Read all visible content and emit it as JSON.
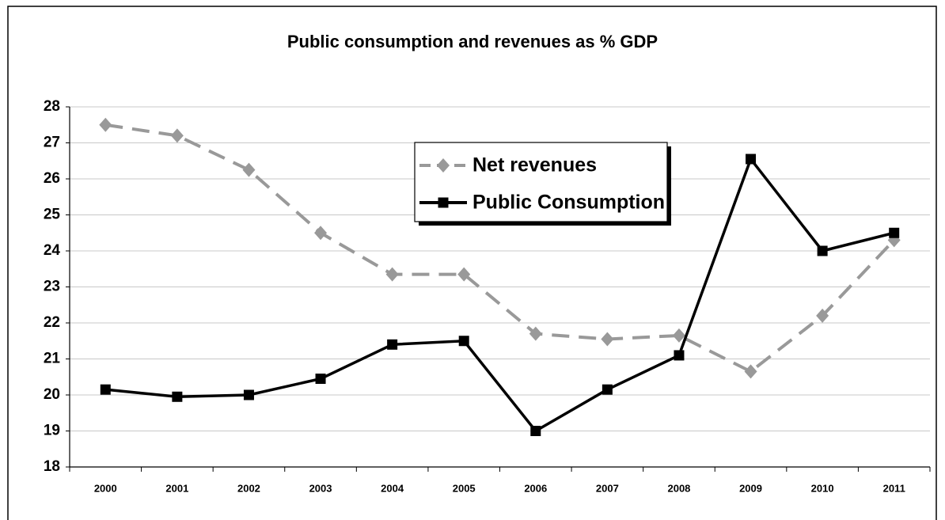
{
  "chart_data": {
    "type": "line",
    "title": "Public consumption and revenues as % GDP",
    "categories": [
      "2000",
      "2001",
      "2002",
      "2003",
      "2004",
      "2005",
      "2006",
      "2007",
      "2008",
      "2009",
      "2010",
      "2011"
    ],
    "series": [
      {
        "name": "Net revenues",
        "color": "#999999",
        "marker": "diamond",
        "line_style": "dashed",
        "values": [
          27.5,
          27.2,
          26.25,
          24.5,
          23.35,
          23.35,
          21.7,
          21.55,
          21.65,
          20.65,
          22.2,
          24.3
        ]
      },
      {
        "name": "Public Consumption",
        "color": "#000000",
        "marker": "square",
        "line_style": "solid",
        "values": [
          20.15,
          19.95,
          20.0,
          20.45,
          21.4,
          21.5,
          19.0,
          20.15,
          21.1,
          26.55,
          24.0,
          24.5
        ]
      }
    ],
    "ylim": [
      18,
      28
    ],
    "yticks": [
      18,
      19,
      20,
      21,
      22,
      23,
      24,
      25,
      26,
      27,
      28
    ],
    "grid": true
  }
}
